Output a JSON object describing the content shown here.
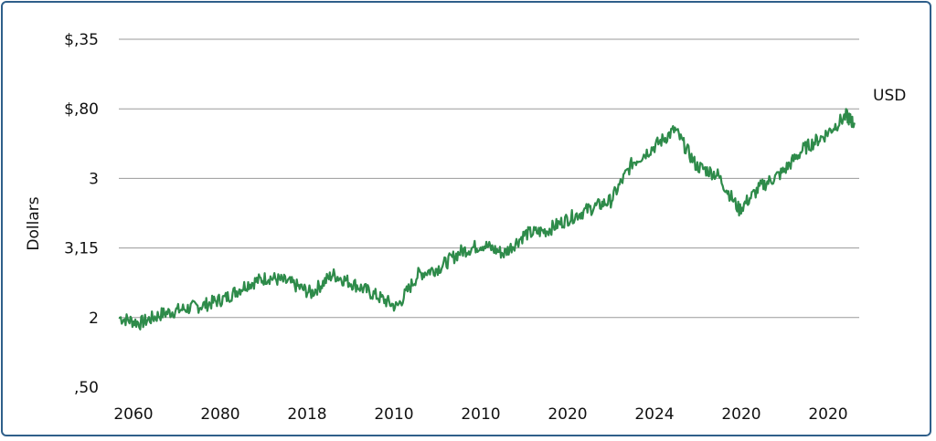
{
  "chart_data": {
    "type": "line",
    "ylabel": "Dollars",
    "y_ticks": [
      {
        "label": "$,35",
        "value": 5
      },
      {
        "label": "$,80",
        "value": 4
      },
      {
        "label": "3",
        "value": 3
      },
      {
        "label": "3,15",
        "value": 2
      },
      {
        "label": "2",
        "value": 1
      },
      {
        "label": ",50",
        "value": 0
      }
    ],
    "ylim": [
      0,
      5
    ],
    "x_ticks": [
      "2060",
      "2080",
      "2018",
      "2010",
      "2010",
      "2020",
      "2024",
      "2020",
      "2020"
    ],
    "grid": true,
    "colors": {
      "line": "#2e8b4a",
      "grid": "#9a9a9a",
      "border": "#2f5f8a"
    },
    "series": [
      {
        "name": "USD",
        "x": [
          0,
          0.25,
          0.5,
          0.75,
          1,
          1.25,
          1.5,
          1.75,
          2,
          2.25,
          2.5,
          2.75,
          3,
          3.25,
          3.5,
          3.75,
          4,
          4.25,
          4.5,
          4.75,
          5,
          5.25,
          5.5,
          5.75,
          6,
          6.25,
          6.5,
          6.75,
          7,
          7.25,
          7.5,
          7.75,
          8,
          8.25,
          8.5,
          8.6
        ],
        "values": [
          1.0,
          0.92,
          1.05,
          1.12,
          1.18,
          1.28,
          1.48,
          1.58,
          1.5,
          1.35,
          1.62,
          1.48,
          1.32,
          1.15,
          1.62,
          1.72,
          1.95,
          2.05,
          1.92,
          2.2,
          2.25,
          2.42,
          2.56,
          2.68,
          3.22,
          3.45,
          3.7,
          3.18,
          3.05,
          2.55,
          2.88,
          3.08,
          3.42,
          3.62,
          3.9,
          3.78
        ]
      }
    ]
  }
}
